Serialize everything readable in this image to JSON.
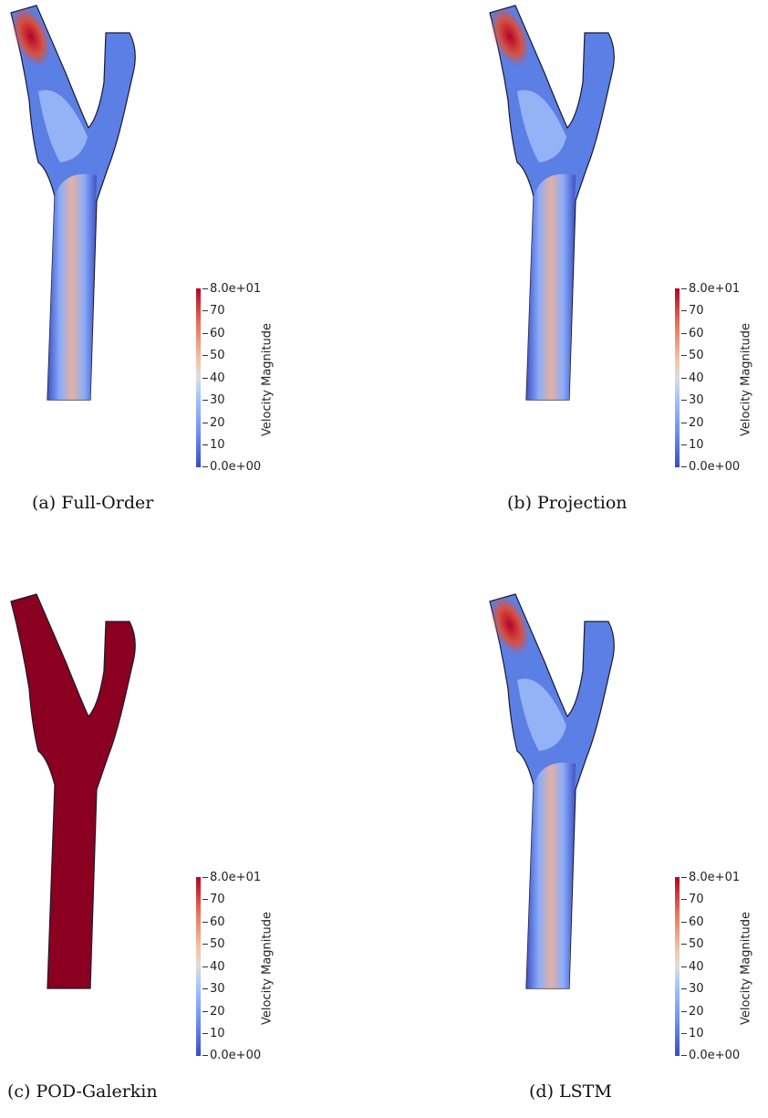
{
  "colorbar": {
    "title": "Velocity Magnitude",
    "ticks": [
      "8.0e+01",
      "70",
      "60",
      "50",
      "40",
      "30",
      "20",
      "10",
      "0.0e+00"
    ],
    "range": [
      0,
      80
    ],
    "colormap": [
      "#b40426",
      "#e7745b",
      "#f4c4a6",
      "#dddddd",
      "#aac7fd",
      "#6f92f3",
      "#3b4cc0"
    ]
  },
  "panels": [
    {
      "id": "a",
      "caption": "(a) Full-Order"
    },
    {
      "id": "b",
      "caption": "(b) Projection"
    },
    {
      "id": "c",
      "caption": "(c) POD-Galerkin"
    },
    {
      "id": "d",
      "caption": "(d) LSTM"
    }
  ],
  "colors": {
    "solid_field": "#8b0020",
    "edge_dark": "#1a1a2e"
  }
}
